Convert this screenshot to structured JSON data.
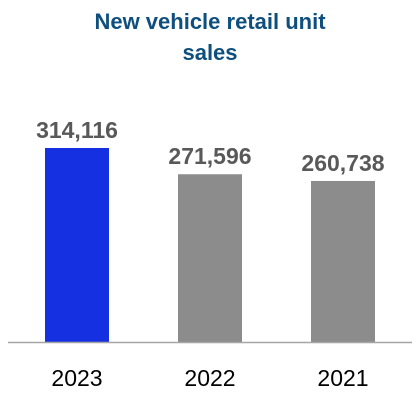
{
  "chart_data": {
    "type": "bar",
    "title_lines": [
      "New vehicle retail unit",
      "sales"
    ],
    "categories": [
      "2023",
      "2022",
      "2021"
    ],
    "values": [
      314116,
      271596,
      260738
    ],
    "data_labels": [
      "314,116",
      "271,596",
      "260,738"
    ],
    "ylim": [
      0,
      340000
    ],
    "grid": false,
    "bar_colors": [
      "#1530e0",
      "#8c8c8c",
      "#8c8c8c"
    ],
    "title_color": "#0f4f7e",
    "label_color": "#595959",
    "axis_color": "#a6a6a6"
  }
}
